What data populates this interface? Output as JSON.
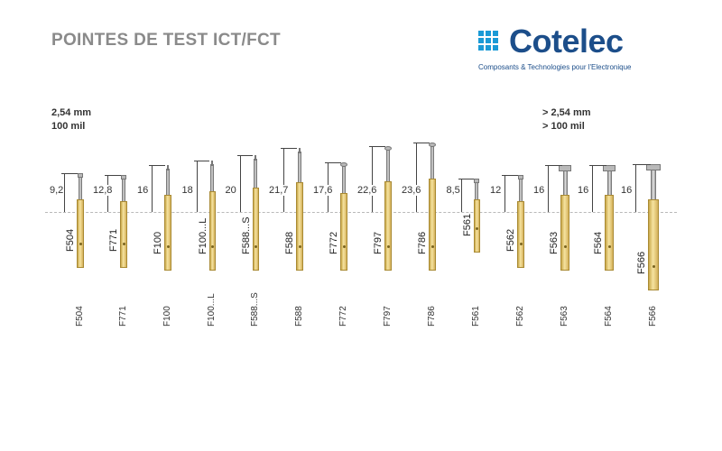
{
  "header": {
    "title": "POINTES DE TEST ICT/FCT",
    "logo_name": "Cotelec",
    "logo_tagline": "Composants & Technologies pour l'Electronique"
  },
  "pitch_left": {
    "line1": "2,54 mm",
    "line2": "100 mil"
  },
  "pitch_right": {
    "line1": "> 2,54 mm",
    "line2": "> 100 mil"
  },
  "probes": [
    {
      "model": "F504",
      "dimension": "9,2"
    },
    {
      "model": "F771",
      "dimension": "12,8"
    },
    {
      "model": "F100",
      "dimension": "16"
    },
    {
      "model": "F100...L",
      "dimension": "18"
    },
    {
      "model": "F588...S",
      "dimension": "20"
    },
    {
      "model": "F588",
      "dimension": "21,7"
    },
    {
      "model": "F772",
      "dimension": "17,6"
    },
    {
      "model": "F797",
      "dimension": "22,6"
    },
    {
      "model": "F786",
      "dimension": "23,6"
    },
    {
      "model": "F561",
      "dimension": "8,5"
    },
    {
      "model": "F562",
      "dimension": "12"
    },
    {
      "model": "F563",
      "dimension": "16"
    },
    {
      "model": "F564",
      "dimension": "16"
    },
    {
      "model": "F566",
      "dimension": "16"
    }
  ],
  "colors": {
    "accent": "#1c4e8a",
    "logo_squares": "#1a9ad6",
    "barrel": "#e8cf7a",
    "title": "#8a8a8a"
  }
}
